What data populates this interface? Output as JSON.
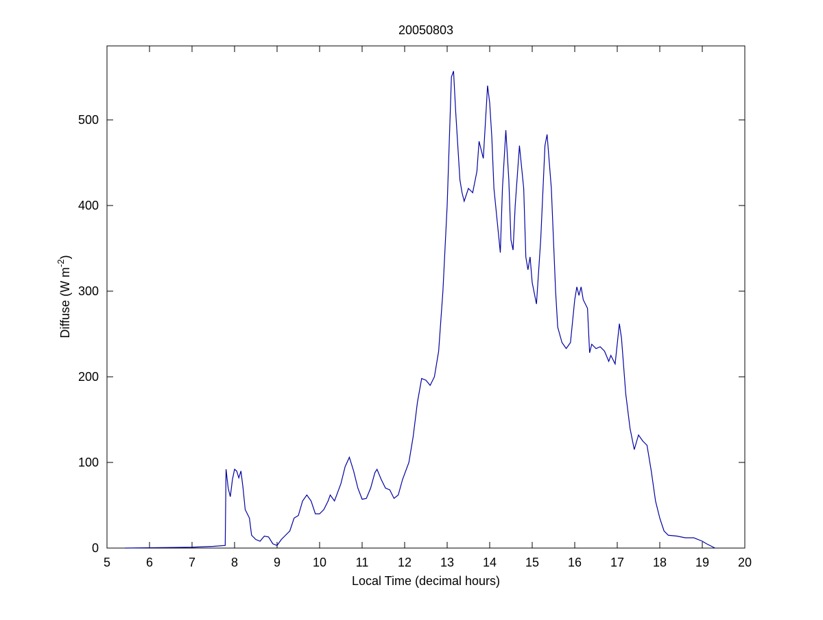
{
  "chart_data": {
    "type": "line",
    "title": "20050803",
    "xlabel": "Local Time (decimal hours)",
    "ylabel": {
      "text": "Diffuse (W m",
      "sup": "-2",
      "end": ")"
    },
    "xlim": [
      5,
      20
    ],
    "xticks": [
      5,
      6,
      7,
      8,
      9,
      10,
      11,
      12,
      13,
      14,
      15,
      16,
      17,
      18,
      19,
      20
    ],
    "ylim": [
      0,
      586.4
    ],
    "yticks": [
      0,
      100,
      200,
      300,
      400,
      500
    ],
    "x": [
      5.42,
      7.0,
      7.5,
      7.78,
      7.8,
      7.85,
      7.9,
      7.95,
      8.0,
      8.05,
      8.1,
      8.15,
      8.2,
      8.25,
      8.3,
      8.35,
      8.4,
      8.5,
      8.6,
      8.7,
      8.8,
      8.9,
      9.0,
      9.1,
      9.2,
      9.3,
      9.4,
      9.5,
      9.6,
      9.7,
      9.8,
      9.9,
      10.0,
      10.1,
      10.2,
      10.25,
      10.35,
      10.5,
      10.6,
      10.7,
      10.8,
      10.9,
      11.0,
      11.1,
      11.2,
      11.3,
      11.35,
      11.45,
      11.55,
      11.65,
      11.75,
      11.85,
      11.95,
      12.1,
      12.2,
      12.3,
      12.4,
      12.5,
      12.6,
      12.7,
      12.8,
      12.9,
      13.0,
      13.1,
      13.15,
      13.2,
      13.3,
      13.35,
      13.4,
      13.5,
      13.6,
      13.7,
      13.75,
      13.85,
      13.95,
      14.0,
      14.05,
      14.1,
      14.2,
      14.25,
      14.3,
      14.38,
      14.45,
      14.5,
      14.55,
      14.6,
      14.7,
      14.8,
      14.85,
      14.9,
      14.95,
      15.0,
      15.1,
      15.2,
      15.3,
      15.35,
      15.45,
      15.55,
      15.6,
      15.7,
      15.8,
      15.9,
      16.0,
      16.05,
      16.1,
      16.15,
      16.2,
      16.3,
      16.35,
      16.4,
      16.5,
      16.6,
      16.7,
      16.8,
      16.85,
      16.95,
      17.05,
      17.1,
      17.2,
      17.3,
      17.4,
      17.5,
      17.6,
      17.7,
      17.8,
      17.9,
      18.0,
      18.1,
      18.2,
      18.4,
      18.6,
      18.8,
      19.0,
      19.1,
      19.3
    ],
    "series": [
      {
        "color": "#0000a0",
        "values": [
          0,
          1,
          2,
          3,
          92,
          70,
          60,
          80,
          92,
          90,
          82,
          90,
          70,
          45,
          40,
          35,
          15,
          10,
          8,
          14,
          13,
          5,
          3,
          10,
          15,
          20,
          35,
          38,
          55,
          62,
          55,
          40,
          40,
          45,
          55,
          62,
          55,
          75,
          95,
          106,
          90,
          70,
          57,
          58,
          70,
          88,
          92,
          80,
          70,
          68,
          58,
          62,
          80,
          100,
          130,
          170,
          198,
          196,
          190,
          200,
          230,
          300,
          400,
          550,
          557,
          510,
          430,
          415,
          405,
          420,
          415,
          440,
          475,
          455,
          540,
          520,
          480,
          420,
          370,
          345,
          420,
          488,
          430,
          360,
          348,
          400,
          470,
          420,
          340,
          325,
          340,
          310,
          285,
          360,
          470,
          483,
          420,
          300,
          258,
          240,
          233,
          240,
          290,
          305,
          295,
          305,
          290,
          280,
          228,
          238,
          233,
          235,
          230,
          218,
          225,
          215,
          262,
          245,
          180,
          140,
          115,
          132,
          125,
          120,
          90,
          55,
          35,
          20,
          15,
          14,
          12,
          12,
          8,
          5,
          0
        ]
      }
    ]
  }
}
